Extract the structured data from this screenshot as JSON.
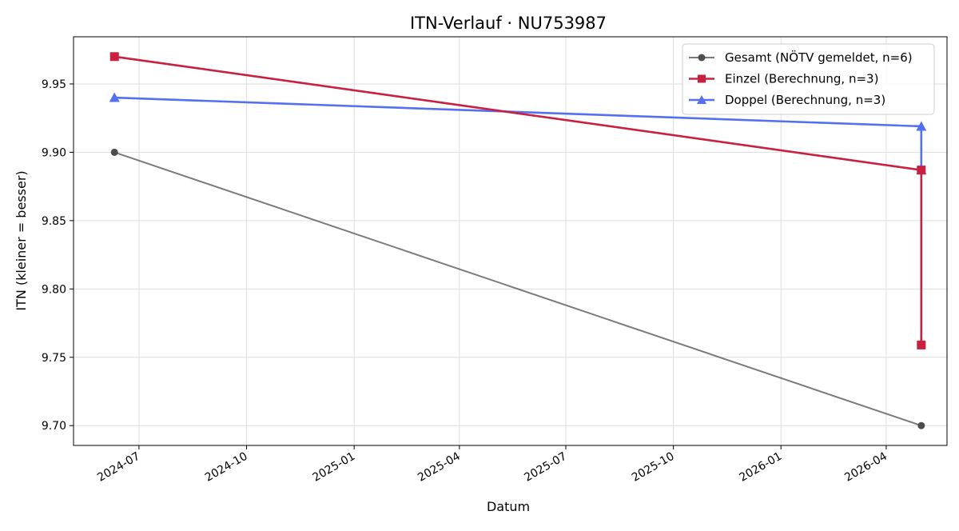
{
  "chart_data": {
    "type": "line",
    "title": "ITN-Verlauf · NU753987",
    "xlabel": "Datum",
    "ylabel": "ITN  (kleiner = besser)",
    "xlim": [
      "2024-05-06",
      "2026-05-23"
    ],
    "ylim": [
      9.6855,
      9.9845
    ],
    "grid": true,
    "legend_position": "top-right",
    "x_ticks": [
      {
        "date": "2024-07-01",
        "label": "2024-07"
      },
      {
        "date": "2024-10-01",
        "label": "2024-10"
      },
      {
        "date": "2025-01-01",
        "label": "2025-01"
      },
      {
        "date": "2025-04-01",
        "label": "2025-04"
      },
      {
        "date": "2025-07-01",
        "label": "2025-07"
      },
      {
        "date": "2025-10-01",
        "label": "2025-10"
      },
      {
        "date": "2026-01-01",
        "label": "2026-01"
      },
      {
        "date": "2026-04-01",
        "label": "2026-04"
      }
    ],
    "y_ticks": [
      {
        "value": 9.7,
        "label": "9.70"
      },
      {
        "value": 9.75,
        "label": "9.75"
      },
      {
        "value": 9.8,
        "label": "9.80"
      },
      {
        "value": 9.85,
        "label": "9.85"
      },
      {
        "value": 9.9,
        "label": "9.90"
      },
      {
        "value": 9.95,
        "label": "9.95"
      }
    ],
    "series": [
      {
        "name": "Gesamt (NÖTV gemeldet, n=6)",
        "color": "#4d4d4d",
        "marker": "circle",
        "points": [
          {
            "x": "2024-06-10",
            "y": 9.9
          },
          {
            "x": "2026-05-01",
            "y": 9.7
          }
        ]
      },
      {
        "name": "Einzel (Berechnung, n=3)",
        "color": "#c8203e",
        "marker": "square",
        "points": [
          {
            "x": "2024-06-10",
            "y": 9.97
          },
          {
            "x": "2026-05-01",
            "y": 9.887
          },
          {
            "x": "2026-05-01",
            "y": 9.759
          }
        ]
      },
      {
        "name": "Doppel (Berechnung, n=3)",
        "color": "#5470f0",
        "marker": "triangle",
        "points": [
          {
            "x": "2024-06-10",
            "y": 9.94
          },
          {
            "x": "2026-05-01",
            "y": 9.919
          },
          {
            "x": "2026-05-01",
            "y": 9.887
          }
        ]
      }
    ]
  }
}
